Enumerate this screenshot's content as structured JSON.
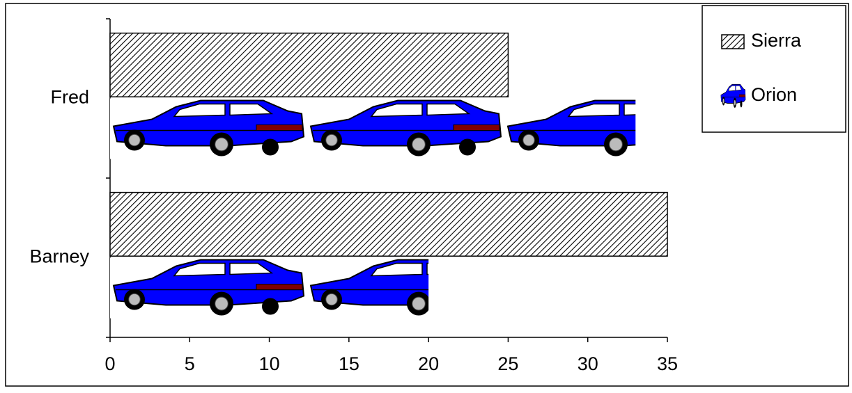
{
  "chart_data": {
    "type": "pictograph-bar",
    "categories": [
      "Fred",
      "Barney"
    ],
    "series": [
      {
        "name": "Sierra",
        "color": "#000000",
        "values": [
          25,
          35
        ]
      },
      {
        "name": "Orion",
        "color": "#0000ff",
        "values": [
          33,
          20
        ]
      }
    ],
    "xlim": [
      0,
      35
    ],
    "xticks": [
      0,
      5,
      10,
      15,
      20,
      25,
      30,
      35
    ],
    "legend": "top-right"
  }
}
